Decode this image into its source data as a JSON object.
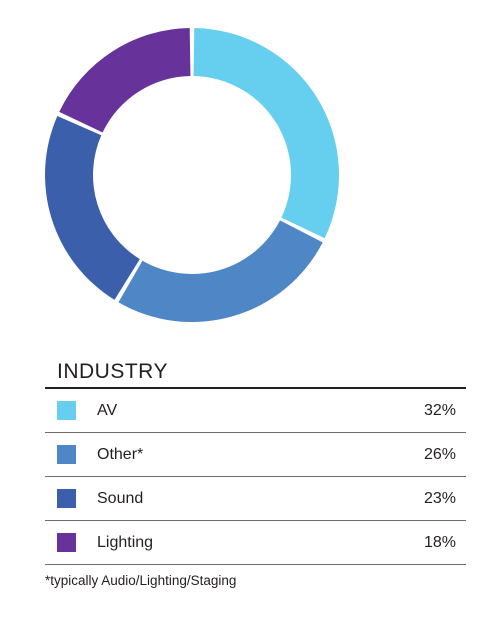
{
  "chart_data": {
    "type": "pie",
    "donut": true,
    "legend_title": "INDUSTRY",
    "legend_placement": "bottom",
    "slices": [
      {
        "label": "AV",
        "value": 32,
        "display": "32%",
        "color": "#66cff0"
      },
      {
        "label": "Other*",
        "value": 26,
        "display": "26%",
        "color": "#4f86c6"
      },
      {
        "label": "Sound",
        "value": 23,
        "display": "23%",
        "color": "#3c5fab"
      },
      {
        "label": "Lighting",
        "value": 18,
        "display": "18%",
        "color": "#67329a"
      }
    ],
    "footnote": "*typically Audio/Lighting/Staging"
  }
}
